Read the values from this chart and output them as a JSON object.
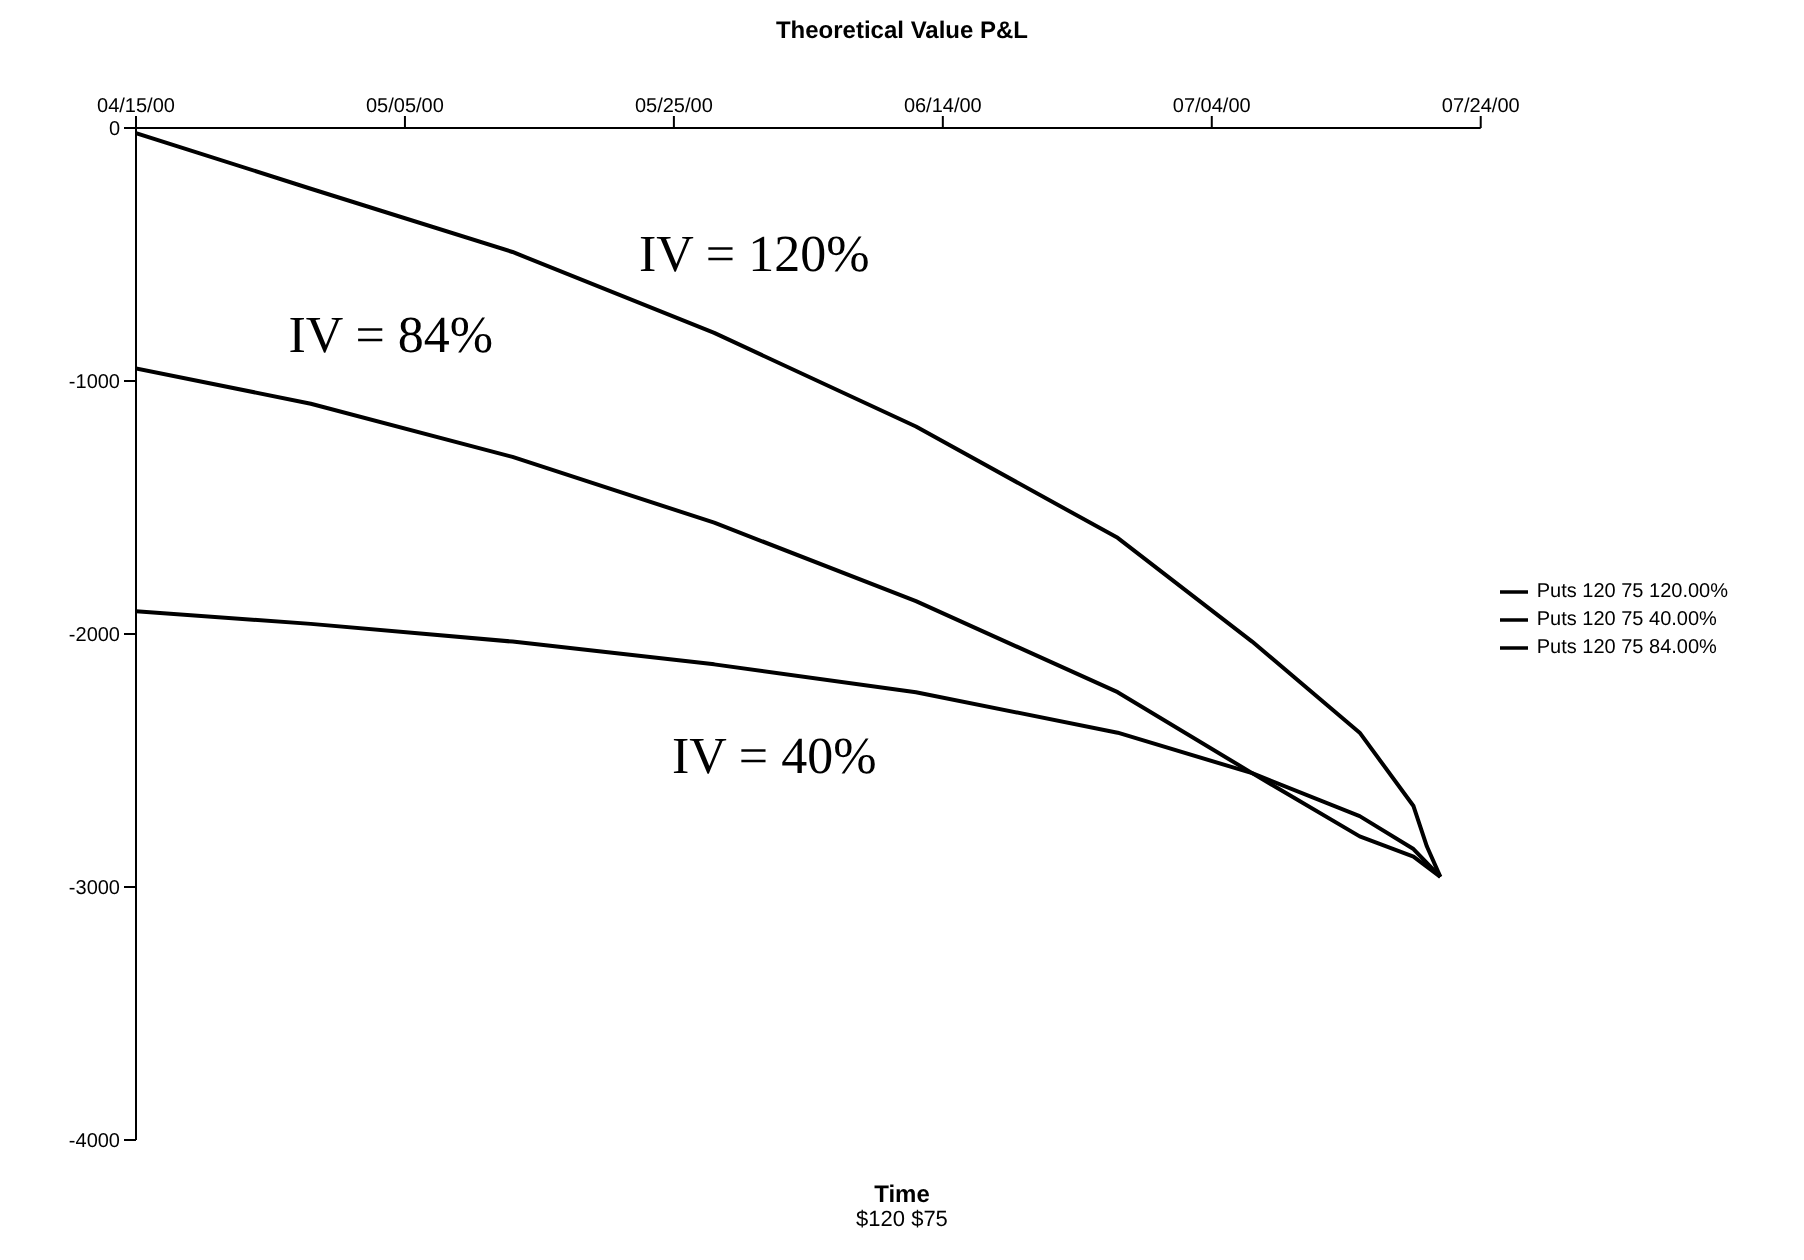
{
  "chart_data": {
    "type": "line",
    "title": "Theoretical Value P&L",
    "xlabel": "Time",
    "annotations": [
      {
        "text": "IV = 120%",
        "x": "2000-05-28",
        "y": -810
      },
      {
        "text": "IV = 84%",
        "x": "2000-04-28",
        "y": -1090
      },
      {
        "text": "IV = 40%",
        "x": "2000-05-28",
        "y": -2120
      },
      "$120 $75"
    ],
    "xlim": [
      "2000-04-15",
      "2000-07-24"
    ],
    "xticks": [
      {
        "value": "2000-04-15",
        "label": "04/15/00"
      },
      {
        "value": "2000-05-05",
        "label": "05/05/00"
      },
      {
        "value": "2000-05-25",
        "label": "05/25/00"
      },
      {
        "value": "2000-06-14",
        "label": "06/14/00"
      },
      {
        "value": "2000-07-04",
        "label": "07/04/00"
      },
      {
        "value": "2000-07-24",
        "label": "07/24/00"
      }
    ],
    "ylim": [
      -4000,
      0
    ],
    "yticks": [
      0,
      -1000,
      -2000,
      -3000,
      -4000
    ],
    "legend": "right",
    "marker": "none",
    "line_style": "solid",
    "series": [
      {
        "name": "Puts 120 75 120.00%",
        "color": "#000000",
        "x": [
          "2000-04-15",
          "2000-04-28",
          "2000-05-13",
          "2000-05-28",
          "2000-06-12",
          "2000-06-27",
          "2000-07-07",
          "2000-07-15",
          "2000-07-19",
          "2000-07-20",
          "2000-07-21"
        ],
        "values": [
          -20,
          -240,
          -490,
          -810,
          -1180,
          -1620,
          -2030,
          -2390,
          -2680,
          -2840,
          -2960
        ]
      },
      {
        "name": "Puts 120 75 40.00%",
        "color": "#000000",
        "x": [
          "2000-04-15",
          "2000-04-28",
          "2000-05-13",
          "2000-05-28",
          "2000-06-12",
          "2000-06-27",
          "2000-07-07",
          "2000-07-15",
          "2000-07-19",
          "2000-07-21"
        ],
        "values": [
          -1910,
          -1960,
          -2030,
          -2120,
          -2230,
          -2390,
          -2550,
          -2720,
          -2850,
          -2960
        ]
      },
      {
        "name": "Puts 120 75 84.00%",
        "color": "#000000",
        "x": [
          "2000-04-15",
          "2000-04-28",
          "2000-05-13",
          "2000-05-28",
          "2000-06-12",
          "2000-06-27",
          "2000-07-07",
          "2000-07-15",
          "2000-07-19",
          "2000-07-21"
        ],
        "values": [
          -950,
          -1090,
          -1300,
          -1560,
          -1870,
          -2230,
          -2550,
          -2800,
          -2880,
          -2960
        ]
      }
    ]
  }
}
